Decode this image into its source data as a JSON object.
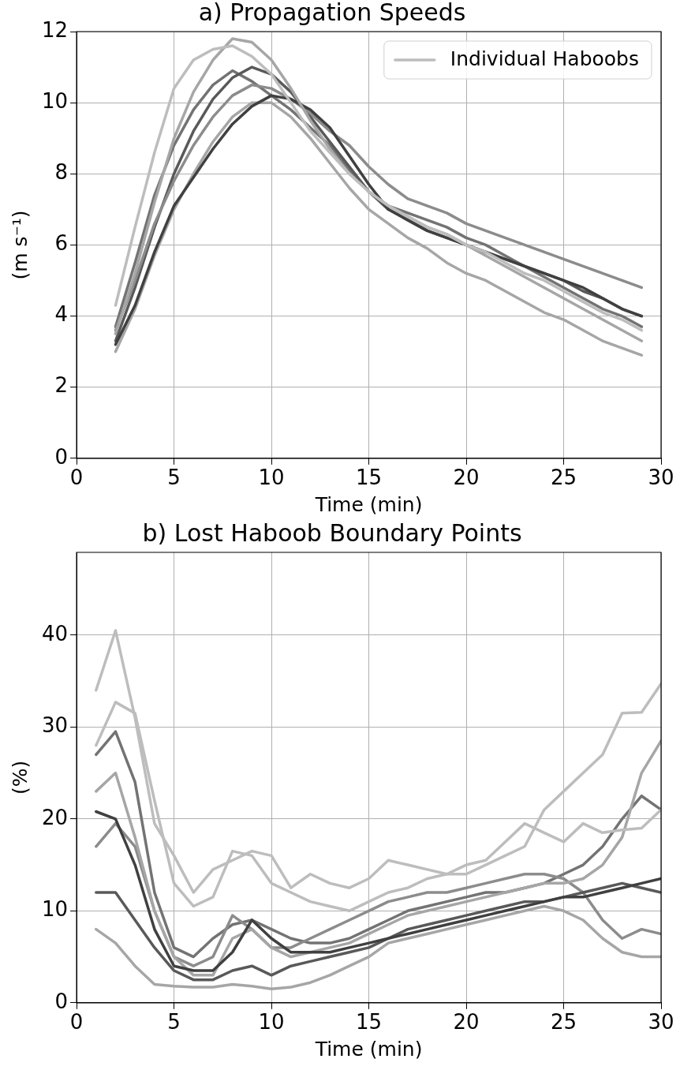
{
  "chart_data": [
    {
      "type": "line",
      "title": "a) Propagation Speeds",
      "xlabel": "Time (min)",
      "ylabel": "(m s⁻¹)",
      "x": [
        2,
        3,
        4,
        5,
        6,
        7,
        8,
        9,
        10,
        11,
        12,
        13,
        14,
        15,
        16,
        17,
        18,
        19,
        20,
        21,
        22,
        23,
        24,
        25,
        26,
        27,
        28,
        29
      ],
      "xlim": [
        0,
        30
      ],
      "xticks": [
        0,
        5,
        10,
        15,
        20,
        25,
        30
      ],
      "ylim": [
        0,
        12
      ],
      "yticks": [
        0,
        2,
        4,
        6,
        8,
        10,
        12
      ],
      "grid": true,
      "legend": "top right",
      "marker": "none",
      "line_style": "solid",
      "series": [
        {
          "name": "Individual Haboobs",
          "color": "#bdbdbd",
          "values": [
            4.3,
            6.5,
            8.6,
            10.4,
            11.2,
            11.5,
            11.6,
            11.3,
            10.8,
            10,
            9.2,
            8.6,
            8.0,
            7.5,
            7.1,
            6.8,
            6.5,
            6.3,
            6.0,
            5.8,
            5.5,
            5.2,
            5.0,
            4.7,
            4.4,
            4.1,
            3.9,
            3.6
          ]
        },
        {
          "color": "#a6a6a6",
          "values": [
            3.5,
            5.2,
            7.2,
            9.0,
            10.3,
            11.2,
            11.8,
            11.7,
            11.2,
            10.4,
            9.5,
            8.7,
            8.0,
            7.5,
            7.1,
            6.8,
            6.5,
            6.3,
            6.0,
            5.7,
            5.4,
            5.1,
            4.8,
            4.5,
            4.2,
            3.9,
            3.6,
            3.3
          ]
        },
        {
          "color": "#404040",
          "values": [
            3.2,
            4.3,
            5.8,
            7.1,
            7.9,
            8.7,
            9.4,
            9.9,
            10.2,
            10.1,
            9.8,
            9.3,
            8.5,
            7.7,
            7.0,
            6.7,
            6.4,
            6.2,
            6.0,
            5.8,
            5.6,
            5.4,
            5.2,
            5.0,
            4.8,
            4.5,
            4.2,
            4.0
          ]
        },
        {
          "color": "#8c8c8c",
          "values": [
            3.6,
            5.0,
            6.6,
            7.8,
            8.8,
            9.6,
            10.2,
            10.5,
            10.4,
            10.1,
            9.7,
            9.2,
            8.8,
            8.2,
            7.7,
            7.3,
            7.1,
            6.9,
            6.6,
            6.4,
            6.2,
            6.0,
            5.8,
            5.6,
            5.4,
            5.2,
            5.0,
            4.8
          ]
        },
        {
          "color": "#a6a6a6",
          "values": [
            3.0,
            4.2,
            5.7,
            7.0,
            8.0,
            8.9,
            9.6,
            10.0,
            10.0,
            9.6,
            9.0,
            8.3,
            7.6,
            7.0,
            6.6,
            6.2,
            5.9,
            5.5,
            5.2,
            5.0,
            4.7,
            4.4,
            4.1,
            3.9,
            3.6,
            3.3,
            3.1,
            2.9
          ]
        },
        {
          "color": "#595959",
          "values": [
            3.3,
            4.8,
            6.5,
            8.0,
            9.2,
            10.1,
            10.7,
            11.0,
            10.8,
            10.3,
            9.6,
            8.9,
            8.2,
            7.5,
            7.0,
            6.7,
            6.4,
            6.2,
            6.0,
            5.8,
            5.6,
            5.4,
            5.2,
            5.0,
            4.7,
            4.5,
            4.2,
            4.0
          ]
        },
        {
          "color": "#737373",
          "values": [
            3.7,
            5.5,
            7.4,
            8.8,
            9.8,
            10.5,
            10.9,
            10.6,
            10.2,
            9.8,
            9.3,
            8.8,
            8.1,
            7.5,
            7.1,
            6.9,
            6.7,
            6.5,
            6.2,
            6.0,
            5.7,
            5.4,
            5.1,
            4.8,
            4.5,
            4.2,
            4.0,
            3.7
          ]
        }
      ]
    },
    {
      "type": "line",
      "title": "b) Lost Haboob Boundary Points",
      "xlabel": "Time (min)",
      "ylabel": "(%)",
      "x": [
        1,
        2,
        3,
        4,
        5,
        6,
        7,
        8,
        9,
        10,
        11,
        12,
        13,
        14,
        15,
        16,
        17,
        18,
        19,
        20,
        21,
        22,
        23,
        24,
        25,
        26,
        27,
        28,
        29,
        30
      ],
      "xlim": [
        0,
        30
      ],
      "xticks": [
        0,
        5,
        10,
        15,
        20,
        25,
        30
      ],
      "ylim": [
        0,
        49
      ],
      "yticks": [
        0,
        10,
        20,
        30,
        40
      ],
      "grid": true,
      "marker": "none",
      "line_style": "solid",
      "series": [
        {
          "color": "#bdbdbd",
          "values": [
            34,
            40.5,
            31,
            19.5,
            16,
            12,
            14.5,
            15.5,
            16.5,
            16,
            12.5,
            14,
            13,
            12.5,
            13.5,
            15.5,
            15,
            14.5,
            14,
            15,
            15.5,
            17.5,
            19.5,
            18.5,
            17.5,
            19.5,
            18.5,
            18.8,
            19,
            21
          ]
        },
        {
          "color": "#bdbdbd",
          "values": [
            28,
            32.7,
            31.5,
            22,
            13,
            10.5,
            11.5,
            16.5,
            16,
            13,
            12,
            11,
            10.5,
            10,
            11,
            12,
            12.5,
            13.5,
            14,
            14,
            15,
            16,
            17,
            21,
            23,
            25,
            27,
            31.5,
            31.6,
            34.7
          ]
        },
        {
          "color": "#404040",
          "values": [
            20.8,
            20,
            15,
            8,
            4,
            3.5,
            3.5,
            5.5,
            9,
            7,
            5.5,
            5.5,
            5.5,
            6,
            6.5,
            7,
            7.5,
            8,
            8.5,
            9,
            9.5,
            10,
            10.5,
            11,
            11.5,
            11.5,
            12,
            12.5,
            13,
            13.5
          ]
        },
        {
          "color": "#a6a6a6",
          "values": [
            8,
            6.5,
            4,
            2,
            1.8,
            1.7,
            1.7,
            2,
            1.8,
            1.5,
            1.7,
            2.2,
            3,
            4,
            5,
            6.5,
            7,
            7.5,
            8,
            8.5,
            9,
            9.5,
            10,
            10.5,
            10,
            9,
            7,
            5.5,
            5,
            5
          ]
        },
        {
          "color": "#a6a6a6",
          "values": [
            23,
            25,
            18,
            10,
            5,
            3,
            3,
            7,
            8,
            6,
            5,
            5.5,
            6,
            6.5,
            7.5,
            8.5,
            9.5,
            10,
            10.5,
            11,
            11.5,
            12,
            12.5,
            13,
            13,
            13.5,
            15,
            18,
            25,
            28.5
          ]
        },
        {
          "color": "#595959",
          "values": [
            12,
            12,
            9,
            6,
            3.5,
            2.5,
            2.5,
            3.5,
            4,
            3,
            4,
            4.5,
            5,
            5.5,
            6,
            7,
            8,
            8.5,
            9,
            9.5,
            10,
            10.5,
            11,
            11,
            11.5,
            12,
            12.5,
            13,
            12.5,
            12
          ]
        },
        {
          "color": "#8c8c8c",
          "values": [
            17,
            19.5,
            17,
            10,
            5,
            4,
            5,
            9.5,
            8,
            6,
            6,
            7,
            8,
            9,
            10,
            11,
            11.5,
            12,
            12,
            12.5,
            13,
            13.5,
            14,
            14,
            13.5,
            12,
            9,
            7,
            8,
            7.5
          ]
        },
        {
          "color": "#737373",
          "values": [
            27,
            29.5,
            24,
            12,
            6,
            5,
            7,
            8.5,
            9,
            8,
            7,
            6.5,
            6.5,
            7,
            8,
            9,
            10,
            10.5,
            11,
            11.5,
            12,
            12,
            12.5,
            13,
            14,
            15,
            17,
            20,
            22.5,
            21
          ]
        }
      ]
    }
  ]
}
